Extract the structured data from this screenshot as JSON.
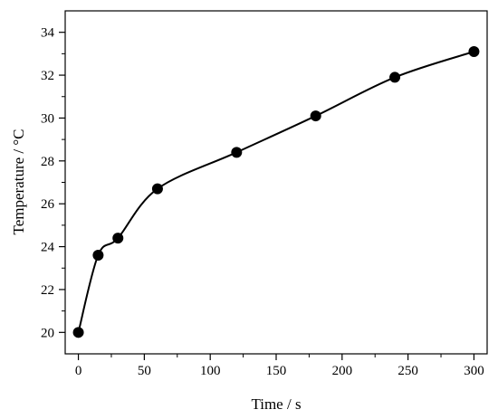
{
  "chart_data": {
    "type": "line",
    "title": "",
    "xlabel": "Time / s",
    "ylabel": "Temperature / °C",
    "xlim": [
      -10,
      310
    ],
    "ylim": [
      19,
      35
    ],
    "x_ticks": [
      0,
      50,
      100,
      150,
      200,
      250,
      300
    ],
    "y_ticks": [
      20,
      22,
      24,
      26,
      28,
      30,
      32,
      34
    ],
    "grid": false,
    "legend": "none",
    "series": [
      {
        "marker": "filled-circle",
        "line": "smooth-curve",
        "color": "#000000",
        "x": [
          0,
          15,
          30,
          60,
          120,
          180,
          240,
          300
        ],
        "y": [
          20.0,
          23.6,
          24.4,
          26.7,
          28.4,
          30.1,
          31.9,
          33.1
        ]
      }
    ]
  }
}
